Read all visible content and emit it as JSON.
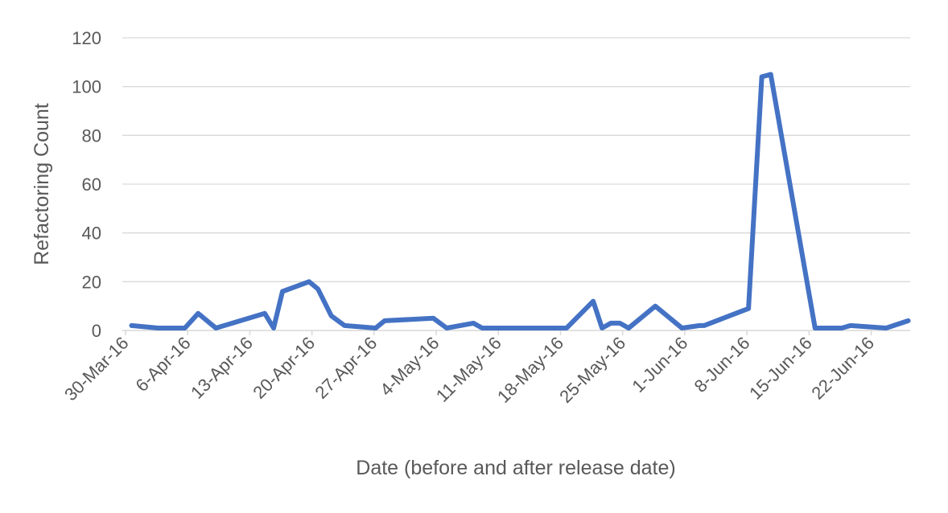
{
  "chart_data": {
    "type": "line",
    "title": "",
    "xlabel": "Date (before and after release date)",
    "ylabel": "Refactoring Count",
    "ylim": [
      0,
      120
    ],
    "yticks": [
      "0",
      "20",
      "40",
      "60",
      "80",
      "100",
      "120"
    ],
    "xlim": [
      0,
      88
    ],
    "xticks": [
      {
        "label": "30-Mar-16",
        "day": 0
      },
      {
        "label": "6-Apr-16",
        "day": 7
      },
      {
        "label": "13-Apr-16",
        "day": 14
      },
      {
        "label": "20-Apr-16",
        "day": 21
      },
      {
        "label": "27-Apr-16",
        "day": 28
      },
      {
        "label": "4-May-16",
        "day": 35
      },
      {
        "label": "11-May-16",
        "day": 42
      },
      {
        "label": "18-May-16",
        "day": 49
      },
      {
        "label": "25-May-16",
        "day": 56
      },
      {
        "label": "1-Jun-16",
        "day": 63
      },
      {
        "label": "8-Jun-16",
        "day": 70
      },
      {
        "label": "15-Jun-16",
        "day": 77
      },
      {
        "label": "22-Jun-16",
        "day": 84
      }
    ],
    "series": [
      {
        "name": "Refactoring Count",
        "color": "#4472C4",
        "x": [
          0.5,
          3.5,
          6.5,
          8.0,
          10.0,
          15.5,
          16.5,
          17.5,
          20.5,
          21.5,
          23.0,
          24.5,
          28.0,
          29.0,
          34.5,
          36.0,
          39.0,
          40.0,
          49.5,
          52.5,
          53.5,
          54.5,
          55.5,
          56.5,
          59.5,
          62.5,
          64.5,
          65.0,
          70.0,
          71.5,
          72.5,
          77.5,
          80.5,
          81.5,
          85.5,
          88.0
        ],
        "values": [
          2,
          1,
          1,
          7,
          1,
          7,
          1,
          16,
          20,
          17,
          6,
          2,
          1,
          4,
          5,
          1,
          3,
          1,
          1,
          12,
          1,
          3,
          3,
          1,
          10,
          1,
          2,
          2,
          9,
          104,
          105,
          1,
          1,
          2,
          1,
          4
        ]
      }
    ]
  }
}
